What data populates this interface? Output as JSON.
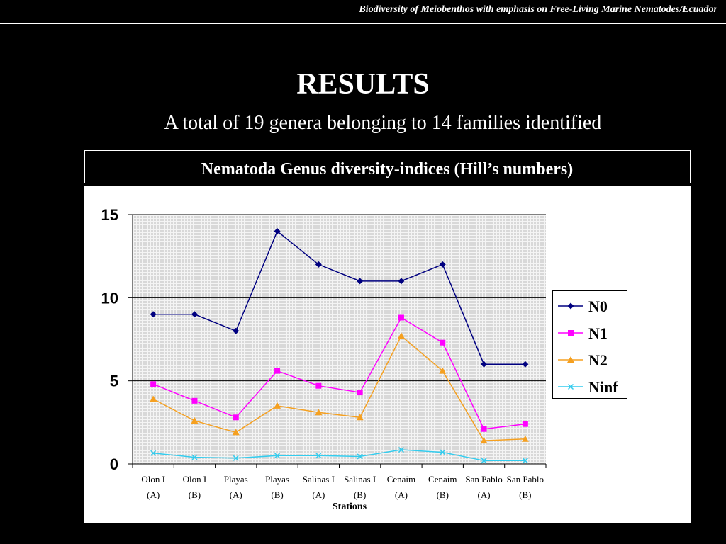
{
  "header": "Biodiversity of Meiobenthos with emphasis on Free-Living Marine Nematodes/Ecuador",
  "title": "RESULTS",
  "subtitle": "A total of 19 genera belonging to 14 families identified",
  "chart_data": {
    "type": "line",
    "title": "Nematoda Genus diversity-indices (Hill’s numbers)",
    "x_label": "Stations",
    "categories": [
      "Olon I (A)",
      "Olon I (B)",
      "Playas (A)",
      "Playas (B)",
      "Salinas I (A)",
      "Salinas I (B)",
      "Cenaim (A)",
      "Cenaim (B)",
      "San Pablo (A)",
      "San Pablo (B)"
    ],
    "series": [
      {
        "name": "N0",
        "color": "#000080",
        "marker": "diamond",
        "values": [
          9,
          9,
          8,
          14,
          12,
          11,
          11,
          12,
          6,
          6
        ]
      },
      {
        "name": "N1",
        "color": "#ff00ff",
        "marker": "square",
        "values": [
          4.8,
          3.8,
          2.8,
          5.6,
          4.7,
          4.3,
          8.8,
          7.3,
          2.1,
          2.4
        ]
      },
      {
        "name": "N2",
        "color": "#f5a020",
        "marker": "triangle",
        "values": [
          3.9,
          2.6,
          1.9,
          3.5,
          3.1,
          2.8,
          7.7,
          5.6,
          1.4,
          1.5
        ]
      },
      {
        "name": "Ninf",
        "color": "#33ccee",
        "marker": "x",
        "values": [
          0.65,
          0.4,
          0.35,
          0.5,
          0.5,
          0.45,
          0.85,
          0.7,
          0.2,
          0.2
        ]
      }
    ],
    "ylim": [
      0,
      15
    ],
    "yticks": [
      0,
      5,
      10,
      15
    ],
    "grid": true,
    "legend": "right"
  }
}
